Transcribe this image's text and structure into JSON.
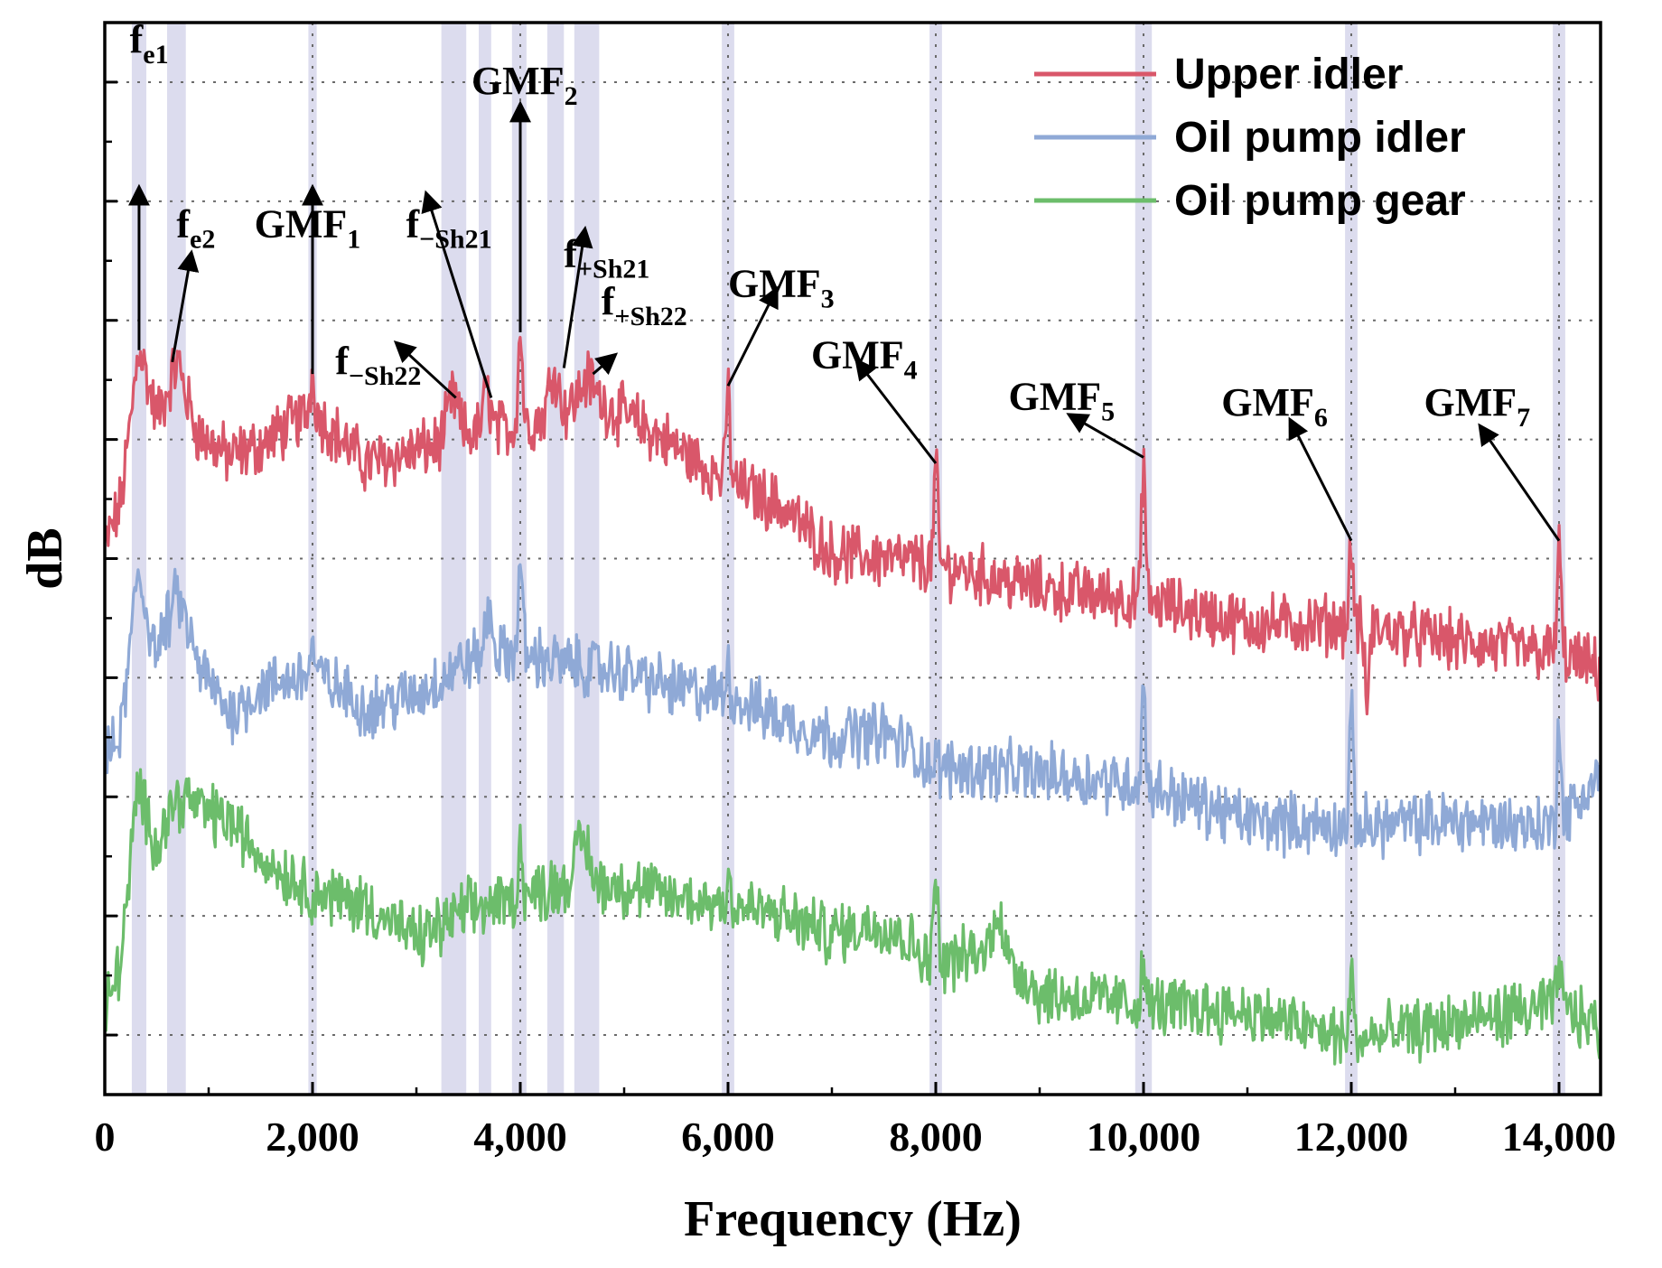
{
  "chart_data": {
    "type": "line",
    "title": "",
    "xlabel": "Frequency (Hz)",
    "ylabel": "dB",
    "xlim": [
      0,
      14400
    ],
    "ylim": [
      0,
      9
    ],
    "x_ticks": [
      0,
      2000,
      4000,
      6000,
      8000,
      10000,
      12000,
      14000
    ],
    "x_tick_labels": [
      "0",
      "2,000",
      "4,000",
      "6,000",
      "8,000",
      "10,000",
      "12,000",
      "14,000"
    ],
    "y_gridlines": [
      0.5,
      1.5,
      2.5,
      3.5,
      4.5,
      5.5,
      6.5,
      7.5,
      8.5
    ],
    "y_tick_labels_shown": false,
    "legend_position": "top-right",
    "highlight_bands": [
      [
        260,
        400
      ],
      [
        600,
        780
      ],
      [
        1960,
        2040
      ],
      [
        3240,
        3480
      ],
      [
        3600,
        3720
      ],
      [
        3920,
        4060
      ],
      [
        4260,
        4420
      ],
      [
        4520,
        4760
      ],
      [
        5940,
        6060
      ],
      [
        7940,
        8060
      ],
      [
        9920,
        10080
      ],
      [
        11940,
        12060
      ],
      [
        13940,
        14060
      ]
    ],
    "series": [
      {
        "name": "Upper idler",
        "color": "#d9576a",
        "baseline": [
          [
            0,
            4.6
          ],
          [
            150,
            4.95
          ],
          [
            330,
            6.2
          ],
          [
            500,
            5.7
          ],
          [
            700,
            6.0
          ],
          [
            900,
            5.55
          ],
          [
            1200,
            5.35
          ],
          [
            1500,
            5.45
          ],
          [
            2000,
            5.75
          ],
          [
            2500,
            5.3
          ],
          [
            3000,
            5.4
          ],
          [
            3500,
            5.55
          ],
          [
            4000,
            5.6
          ],
          [
            4400,
            5.75
          ],
          [
            4700,
            5.85
          ],
          [
            5200,
            5.6
          ],
          [
            6000,
            5.15
          ],
          [
            6500,
            4.95
          ],
          [
            7000,
            4.55
          ],
          [
            8000,
            4.45
          ],
          [
            9000,
            4.25
          ],
          [
            10000,
            4.15
          ],
          [
            11000,
            3.95
          ],
          [
            12000,
            3.95
          ],
          [
            13000,
            3.8
          ],
          [
            14000,
            3.7
          ],
          [
            14400,
            3.55
          ]
        ],
        "peaks": [
          [
            330,
            6.3,
            70
          ],
          [
            700,
            6.15,
            90
          ],
          [
            2000,
            6.05,
            30
          ],
          [
            3350,
            5.85,
            70
          ],
          [
            3680,
            5.9,
            50
          ],
          [
            4000,
            6.4,
            30
          ],
          [
            4320,
            6.1,
            60
          ],
          [
            4640,
            6.0,
            90
          ],
          [
            6000,
            5.95,
            25
          ],
          [
            8000,
            5.3,
            25
          ],
          [
            10000,
            5.35,
            25
          ],
          [
            12000,
            4.65,
            25
          ],
          [
            14000,
            4.65,
            25
          ]
        ],
        "dips": [
          [
            12150,
            3.3,
            30
          ]
        ]
      },
      {
        "name": "Oil pump idler",
        "color": "#8fa9d6",
        "baseline": [
          [
            0,
            2.8
          ],
          [
            150,
            3.0
          ],
          [
            320,
            4.3
          ],
          [
            500,
            3.7
          ],
          [
            700,
            4.2
          ],
          [
            900,
            3.6
          ],
          [
            1200,
            3.2
          ],
          [
            1500,
            3.4
          ],
          [
            2000,
            3.55
          ],
          [
            2500,
            3.25
          ],
          [
            3000,
            3.35
          ],
          [
            3500,
            3.65
          ],
          [
            4000,
            3.7
          ],
          [
            4500,
            3.6
          ],
          [
            5000,
            3.55
          ],
          [
            5500,
            3.4
          ],
          [
            6000,
            3.35
          ],
          [
            6500,
            3.15
          ],
          [
            7000,
            3.0
          ],
          [
            7500,
            3.05
          ],
          [
            8000,
            2.75
          ],
          [
            9000,
            2.7
          ],
          [
            10000,
            2.6
          ],
          [
            11000,
            2.3
          ],
          [
            12000,
            2.25
          ],
          [
            13000,
            2.3
          ],
          [
            14000,
            2.25
          ],
          [
            14400,
            2.7
          ]
        ],
        "peaks": [
          [
            320,
            4.4,
            60
          ],
          [
            700,
            4.2,
            90
          ],
          [
            2000,
            3.75,
            30
          ],
          [
            3700,
            4.05,
            50
          ],
          [
            4000,
            4.45,
            30
          ],
          [
            6000,
            3.6,
            25
          ],
          [
            10000,
            3.45,
            25
          ],
          [
            12000,
            3.2,
            25
          ],
          [
            14000,
            3.2,
            25
          ]
        ],
        "dips": []
      },
      {
        "name": "Oil pump gear",
        "color": "#6cbd6b",
        "baseline": [
          [
            0,
            0.7
          ],
          [
            150,
            1.1
          ],
          [
            320,
            2.5
          ],
          [
            500,
            2.1
          ],
          [
            700,
            2.6
          ],
          [
            900,
            2.4
          ],
          [
            1200,
            2.3
          ],
          [
            1500,
            2.0
          ],
          [
            2000,
            1.7
          ],
          [
            2500,
            1.6
          ],
          [
            3000,
            1.3
          ],
          [
            3500,
            1.55
          ],
          [
            4000,
            1.65
          ],
          [
            4500,
            1.8
          ],
          [
            5000,
            1.75
          ],
          [
            5500,
            1.65
          ],
          [
            6000,
            1.6
          ],
          [
            6500,
            1.5
          ],
          [
            7000,
            1.35
          ],
          [
            7500,
            1.45
          ],
          [
            8000,
            1.1
          ],
          [
            8500,
            1.2
          ],
          [
            8800,
            1.05
          ],
          [
            9000,
            0.85
          ],
          [
            10000,
            0.75
          ],
          [
            11000,
            0.7
          ],
          [
            12000,
            0.45
          ],
          [
            13000,
            0.6
          ],
          [
            14000,
            0.75
          ],
          [
            14400,
            0.55
          ]
        ],
        "peaks": [
          [
            320,
            2.6,
            60
          ],
          [
            700,
            2.5,
            80
          ],
          [
            4000,
            2.1,
            30
          ],
          [
            4600,
            2.15,
            80
          ],
          [
            6000,
            1.85,
            25
          ],
          [
            8000,
            1.95,
            25
          ],
          [
            8600,
            1.6,
            60
          ],
          [
            10000,
            1.1,
            25
          ],
          [
            12000,
            1.05,
            25
          ],
          [
            14000,
            1.15,
            25
          ]
        ],
        "dips": []
      }
    ],
    "annotations": [
      {
        "main": "f",
        "sub": "e1",
        "label_x": 240,
        "label_y": 8.75,
        "tip_x": 330,
        "tip_y": 7.2,
        "arrow": true
      },
      {
        "main": "f",
        "sub": "e2",
        "label_x": 690,
        "label_y": 7.2,
        "tip_x": 1120,
        "tip_y": 7.3,
        "arrow": true
      },
      {
        "main": "GMF",
        "sub": "1",
        "label_x": 1440,
        "label_y": 7.2,
        "tip_x": 2000,
        "tip_y": 7.2,
        "arrow": true
      },
      {
        "main": "f",
        "sub": "−Sh21",
        "label_x": 2900,
        "label_y": 7.2,
        "tip_x": 3120,
        "tip_y": 7.25,
        "arrow": true
      },
      {
        "main": "GMF",
        "sub": "2",
        "label_x": 3530,
        "label_y": 8.4,
        "tip_x": 4000,
        "tip_y": 8.2,
        "arrow": true
      },
      {
        "main": "f",
        "sub": "+Sh21",
        "label_x": 4420,
        "label_y": 6.95,
        "tip_x": 4680,
        "tip_y": 7.35,
        "arrow": true
      },
      {
        "main": "f",
        "sub": "−Sh22",
        "label_x": 2220,
        "label_y": 6.05,
        "tip_x": 2860,
        "tip_y": 6.2,
        "arrow": true
      },
      {
        "main": "f",
        "sub": "+Sh22",
        "label_x": 4780,
        "label_y": 6.55,
        "tip_x": 4940,
        "tip_y": 6.45,
        "arrow": true
      },
      {
        "main": "GMF",
        "sub": "3",
        "label_x": 6000,
        "label_y": 6.7,
        "tip_x": 6520,
        "tip_y": 6.78,
        "arrow": true
      },
      {
        "main": "GMF",
        "sub": "4",
        "label_x": 6800,
        "label_y": 6.1,
        "tip_x": 7220,
        "tip_y": 6.15,
        "arrow": true
      },
      {
        "main": "GMF",
        "sub": "5",
        "label_x": 8700,
        "label_y": 5.75,
        "tip_x": 9250,
        "tip_y": 5.65,
        "arrow": true
      },
      {
        "main": "GMF",
        "sub": "6",
        "label_x": 10750,
        "label_y": 5.7,
        "tip_x": 11380,
        "tip_y": 5.5,
        "arrow": true
      },
      {
        "main": "GMF",
        "sub": "7",
        "label_x": 12700,
        "label_y": 5.7,
        "tip_x": 13220,
        "tip_y": 5.5,
        "arrow": true
      }
    ]
  }
}
